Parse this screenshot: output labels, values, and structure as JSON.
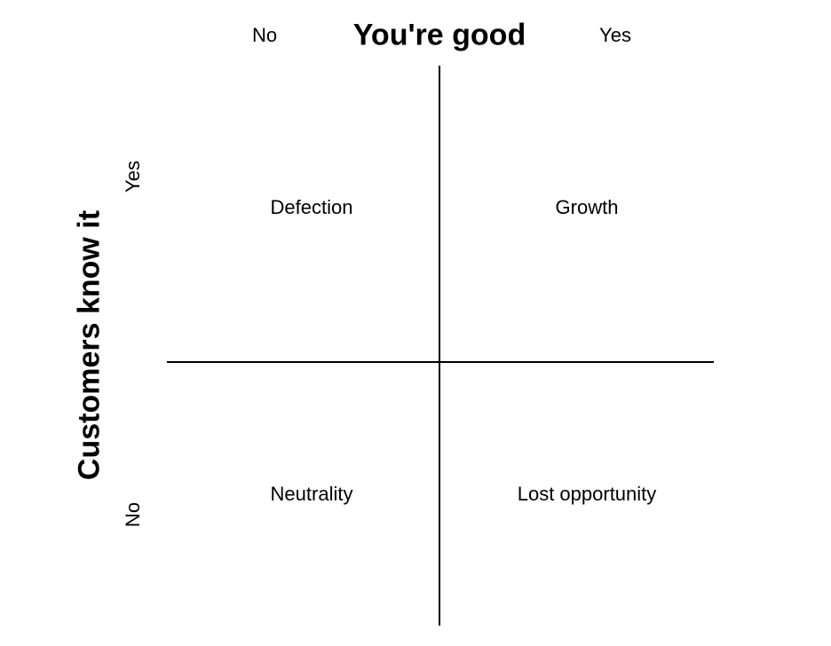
{
  "x_axis": {
    "title": "You're good",
    "left_label": "No",
    "right_label": "Yes"
  },
  "y_axis": {
    "title": "Customers know it",
    "top_label": "Yes",
    "bottom_label": "No"
  },
  "quadrants": {
    "top_left": "Defection",
    "top_right": "Growth",
    "bottom_left": "Neutrality",
    "bottom_right": "Lost opportunity"
  }
}
